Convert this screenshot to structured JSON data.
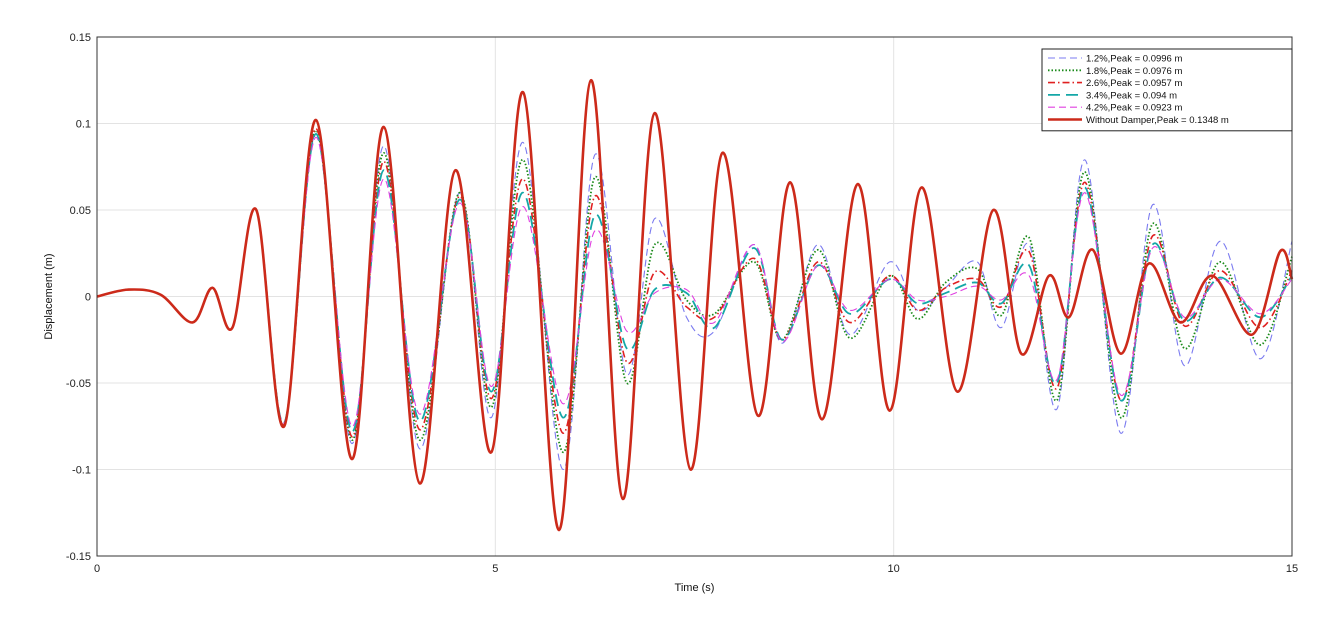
{
  "chart_data": {
    "type": "line",
    "xlabel": "Time (s)",
    "ylabel": "Displacement (m)",
    "xlim": [
      0,
      15
    ],
    "ylim": [
      -0.15,
      0.15
    ],
    "x_ticks": [
      0,
      5,
      10,
      15
    ],
    "y_ticks": [
      -0.15,
      -0.1,
      -0.05,
      0,
      0.05,
      0.1,
      0.15
    ],
    "x_tick_labels": [
      "0",
      "5",
      "10",
      "15"
    ],
    "y_tick_labels": [
      "-0.15",
      "-0.1",
      "-0.05",
      "0",
      "0.05",
      "0.1",
      "0.15"
    ],
    "grid": true,
    "legend_position": "top-right",
    "series": [
      {
        "name": "1.2%,Peak = 0.0996 m",
        "color": "#7b7bf0",
        "dash": "dashed",
        "points": [
          [
            0,
            0
          ],
          [
            0.4,
            0.004
          ],
          [
            0.8,
            0.001
          ],
          [
            1.2,
            -0.015
          ],
          [
            1.45,
            0.005
          ],
          [
            1.7,
            -0.018
          ],
          [
            2.0,
            0.05
          ],
          [
            2.35,
            -0.074
          ],
          [
            2.75,
            0.094
          ],
          [
            3.2,
            -0.085
          ],
          [
            3.6,
            0.087
          ],
          [
            4.05,
            -0.088
          ],
          [
            4.55,
            0.06
          ],
          [
            4.95,
            -0.07
          ],
          [
            5.35,
            0.089
          ],
          [
            5.85,
            -0.1
          ],
          [
            6.25,
            0.082
          ],
          [
            6.65,
            -0.045
          ],
          [
            7.0,
            0.045
          ],
          [
            7.4,
            -0.012
          ],
          [
            7.75,
            -0.02
          ],
          [
            8.25,
            0.03
          ],
          [
            8.6,
            -0.027
          ],
          [
            9.05,
            0.03
          ],
          [
            9.45,
            -0.022
          ],
          [
            9.95,
            0.02
          ],
          [
            10.3,
            -0.008
          ],
          [
            10.65,
            0.005
          ],
          [
            11.05,
            0.02
          ],
          [
            11.35,
            -0.018
          ],
          [
            11.7,
            0.03
          ],
          [
            12.05,
            -0.065
          ],
          [
            12.4,
            0.079
          ],
          [
            12.85,
            -0.079
          ],
          [
            13.25,
            0.053
          ],
          [
            13.65,
            -0.04
          ],
          [
            14.1,
            0.032
          ],
          [
            14.6,
            -0.036
          ],
          [
            15.0,
            0.032
          ]
        ]
      },
      {
        "name": "1.8%,Peak = 0.0976 m",
        "color": "#1a8a1a",
        "dash": "dotted",
        "points": [
          [
            0,
            0
          ],
          [
            0.4,
            0.004
          ],
          [
            0.8,
            0.001
          ],
          [
            1.2,
            -0.015
          ],
          [
            1.45,
            0.005
          ],
          [
            1.7,
            -0.018
          ],
          [
            2.0,
            0.05
          ],
          [
            2.35,
            -0.074
          ],
          [
            2.75,
            0.096
          ],
          [
            3.2,
            -0.083
          ],
          [
            3.6,
            0.083
          ],
          [
            4.05,
            -0.083
          ],
          [
            4.55,
            0.06
          ],
          [
            4.95,
            -0.064
          ],
          [
            5.35,
            0.079
          ],
          [
            5.85,
            -0.09
          ],
          [
            6.25,
            0.069
          ],
          [
            6.65,
            -0.05
          ],
          [
            7.0,
            0.03
          ],
          [
            7.4,
            -0.002
          ],
          [
            7.75,
            -0.01
          ],
          [
            8.25,
            0.02
          ],
          [
            8.6,
            -0.025
          ],
          [
            9.05,
            0.027
          ],
          [
            9.45,
            -0.024
          ],
          [
            9.95,
            0.012
          ],
          [
            10.3,
            -0.013
          ],
          [
            10.65,
            0.008
          ],
          [
            11.05,
            0.016
          ],
          [
            11.35,
            -0.011
          ],
          [
            11.7,
            0.034
          ],
          [
            12.05,
            -0.06
          ],
          [
            12.4,
            0.072
          ],
          [
            12.85,
            -0.07
          ],
          [
            13.25,
            0.042
          ],
          [
            13.65,
            -0.03
          ],
          [
            14.1,
            0.02
          ],
          [
            14.6,
            -0.028
          ],
          [
            15.0,
            0.023
          ]
        ]
      },
      {
        "name": "2.6%,Peak = 0.0957 m",
        "color": "#e02020",
        "dash": "dashdot",
        "points": [
          [
            0,
            0
          ],
          [
            0.4,
            0.004
          ],
          [
            0.8,
            0.001
          ],
          [
            1.2,
            -0.015
          ],
          [
            1.45,
            0.005
          ],
          [
            1.7,
            -0.018
          ],
          [
            2.0,
            0.05
          ],
          [
            2.35,
            -0.074
          ],
          [
            2.75,
            0.097
          ],
          [
            3.2,
            -0.081
          ],
          [
            3.6,
            0.078
          ],
          [
            4.05,
            -0.077
          ],
          [
            4.55,
            0.058
          ],
          [
            4.95,
            -0.059
          ],
          [
            5.35,
            0.068
          ],
          [
            5.85,
            -0.079
          ],
          [
            6.25,
            0.058
          ],
          [
            6.65,
            -0.038
          ],
          [
            7.0,
            0.014
          ],
          [
            7.4,
            -0.006
          ],
          [
            7.75,
            -0.012
          ],
          [
            8.25,
            0.022
          ],
          [
            8.6,
            -0.025
          ],
          [
            9.05,
            0.02
          ],
          [
            9.45,
            -0.015
          ],
          [
            9.95,
            0.012
          ],
          [
            10.3,
            -0.008
          ],
          [
            10.65,
            0.005
          ],
          [
            11.05,
            0.01
          ],
          [
            11.35,
            -0.006
          ],
          [
            11.7,
            0.026
          ],
          [
            12.05,
            -0.053
          ],
          [
            12.4,
            0.066
          ],
          [
            12.85,
            -0.06
          ],
          [
            13.25,
            0.035
          ],
          [
            13.65,
            -0.017
          ],
          [
            14.1,
            0.015
          ],
          [
            14.6,
            -0.018
          ],
          [
            15.0,
            0.015
          ]
        ]
      },
      {
        "name": "3.4%,Peak = 0.094 m",
        "color": "#14a7a7",
        "dash": "longdash",
        "points": [
          [
            0,
            0
          ],
          [
            0.4,
            0.004
          ],
          [
            0.8,
            0.001
          ],
          [
            1.2,
            -0.015
          ],
          [
            1.45,
            0.005
          ],
          [
            1.7,
            -0.018
          ],
          [
            2.0,
            0.05
          ],
          [
            2.35,
            -0.073
          ],
          [
            2.75,
            0.094
          ],
          [
            3.2,
            -0.078
          ],
          [
            3.6,
            0.073
          ],
          [
            4.05,
            -0.072
          ],
          [
            4.55,
            0.056
          ],
          [
            4.95,
            -0.055
          ],
          [
            5.35,
            0.06
          ],
          [
            5.85,
            -0.07
          ],
          [
            6.25,
            0.047
          ],
          [
            6.65,
            -0.03
          ],
          [
            7.0,
            0.004
          ],
          [
            7.4,
            0.002
          ],
          [
            7.75,
            -0.018
          ],
          [
            8.25,
            0.028
          ],
          [
            8.6,
            -0.025
          ],
          [
            9.05,
            0.018
          ],
          [
            9.45,
            -0.01
          ],
          [
            9.95,
            0.01
          ],
          [
            10.3,
            -0.004
          ],
          [
            10.65,
            0.002
          ],
          [
            11.05,
            0.008
          ],
          [
            11.35,
            -0.004
          ],
          [
            11.7,
            0.018
          ],
          [
            12.05,
            -0.05
          ],
          [
            12.4,
            0.063
          ],
          [
            12.85,
            -0.06
          ],
          [
            13.25,
            0.03
          ],
          [
            13.65,
            -0.014
          ],
          [
            14.1,
            0.011
          ],
          [
            14.6,
            -0.012
          ],
          [
            15.0,
            0.012
          ]
        ]
      },
      {
        "name": "4.2%,Peak = 0.0923 m",
        "color": "#e040e0",
        "dash": "dashed",
        "points": [
          [
            0,
            0
          ],
          [
            0.4,
            0.004
          ],
          [
            0.8,
            0.001
          ],
          [
            1.2,
            -0.015
          ],
          [
            1.45,
            0.005
          ],
          [
            1.7,
            -0.018
          ],
          [
            2.0,
            0.05
          ],
          [
            2.35,
            -0.073
          ],
          [
            2.75,
            0.092
          ],
          [
            3.2,
            -0.075
          ],
          [
            3.6,
            0.068
          ],
          [
            4.05,
            -0.068
          ],
          [
            4.55,
            0.054
          ],
          [
            4.95,
            -0.052
          ],
          [
            5.35,
            0.052
          ],
          [
            5.85,
            -0.062
          ],
          [
            6.25,
            0.038
          ],
          [
            6.65,
            -0.02
          ],
          [
            7.0,
            0.002
          ],
          [
            7.4,
            0.004
          ],
          [
            7.75,
            -0.015
          ],
          [
            8.25,
            0.03
          ],
          [
            8.6,
            -0.026
          ],
          [
            9.05,
            0.018
          ],
          [
            9.45,
            -0.008
          ],
          [
            9.95,
            0.01
          ],
          [
            10.3,
            -0.002
          ],
          [
            10.65,
            0.0
          ],
          [
            11.05,
            0.006
          ],
          [
            11.35,
            -0.002
          ],
          [
            11.7,
            0.012
          ],
          [
            12.05,
            -0.048
          ],
          [
            12.4,
            0.06
          ],
          [
            12.85,
            -0.057
          ],
          [
            13.25,
            0.028
          ],
          [
            13.65,
            -0.012
          ],
          [
            14.1,
            0.01
          ],
          [
            14.6,
            -0.01
          ],
          [
            15.0,
            0.01
          ]
        ]
      },
      {
        "name": "Without Damper,Peak = 0.1348 m",
        "color": "#cc2a1a",
        "dash": "solid",
        "points": [
          [
            0,
            0
          ],
          [
            0.4,
            0.004
          ],
          [
            0.8,
            0.001
          ],
          [
            1.2,
            -0.015
          ],
          [
            1.45,
            0.005
          ],
          [
            1.7,
            -0.018
          ],
          [
            2.0,
            0.05
          ],
          [
            2.35,
            -0.075
          ],
          [
            2.75,
            0.102
          ],
          [
            3.2,
            -0.094
          ],
          [
            3.6,
            0.098
          ],
          [
            4.05,
            -0.108
          ],
          [
            4.5,
            0.073
          ],
          [
            4.95,
            -0.09
          ],
          [
            5.35,
            0.118
          ],
          [
            5.8,
            -0.135
          ],
          [
            6.2,
            0.125
          ],
          [
            6.6,
            -0.117
          ],
          [
            7.0,
            0.106
          ],
          [
            7.45,
            -0.1
          ],
          [
            7.85,
            0.083
          ],
          [
            8.3,
            -0.069
          ],
          [
            8.7,
            0.066
          ],
          [
            9.1,
            -0.071
          ],
          [
            9.55,
            0.065
          ],
          [
            9.95,
            -0.066
          ],
          [
            10.35,
            0.063
          ],
          [
            10.8,
            -0.055
          ],
          [
            11.25,
            0.05
          ],
          [
            11.6,
            -0.033
          ],
          [
            11.95,
            0.012
          ],
          [
            12.2,
            -0.012
          ],
          [
            12.5,
            0.027
          ],
          [
            12.85,
            -0.033
          ],
          [
            13.2,
            0.019
          ],
          [
            13.6,
            -0.015
          ],
          [
            14.0,
            0.012
          ],
          [
            14.5,
            -0.022
          ],
          [
            14.85,
            0.026
          ],
          [
            15.0,
            0.01
          ]
        ]
      }
    ]
  }
}
